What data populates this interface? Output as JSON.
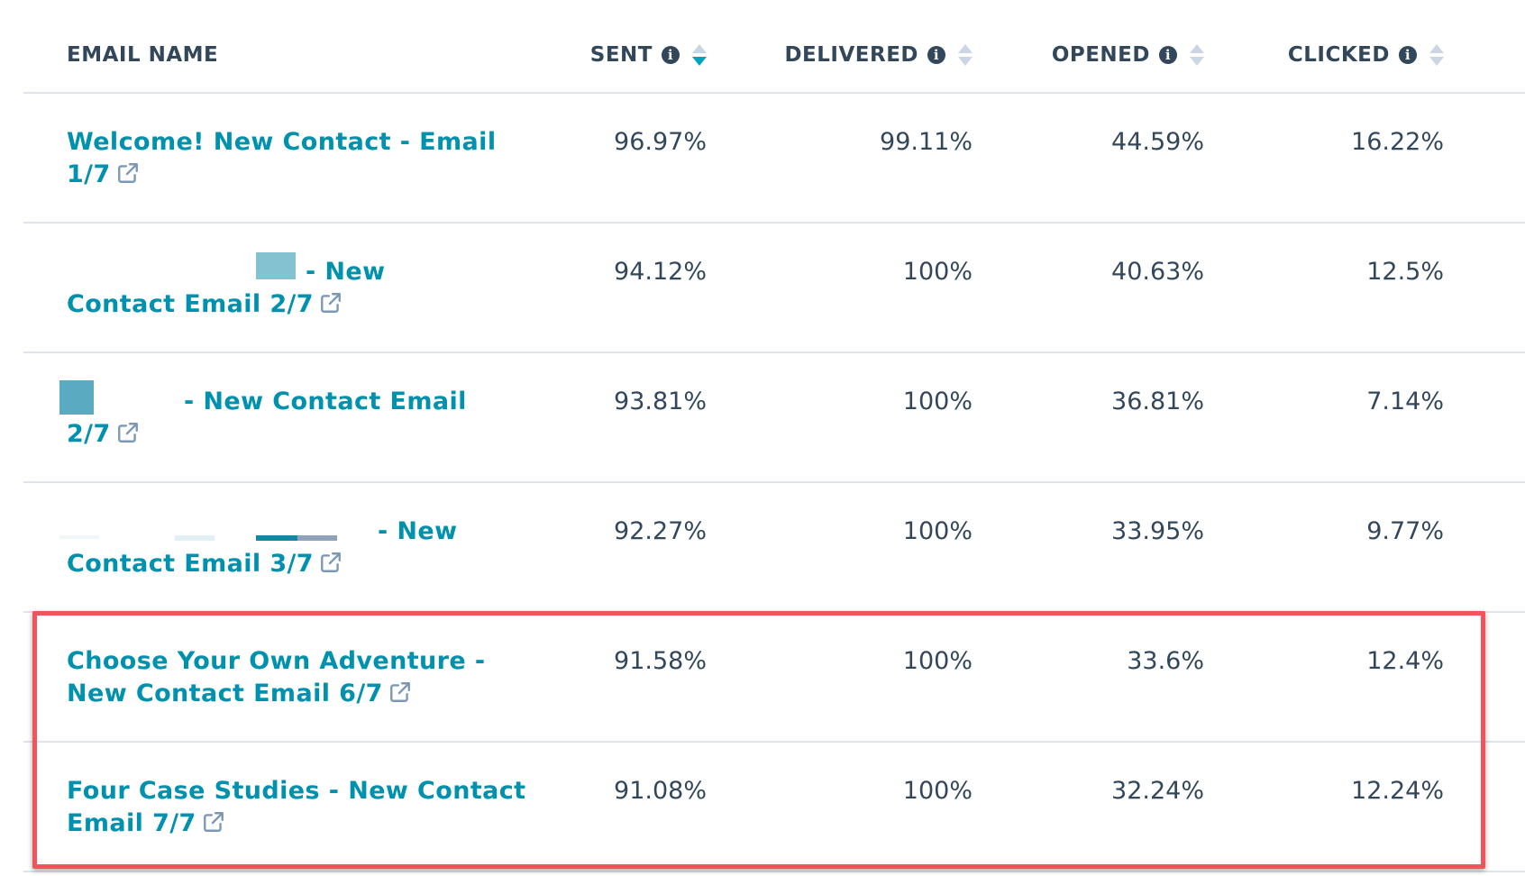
{
  "columns": {
    "email_name": "EMAIL NAME",
    "sent": "SENT",
    "delivered": "DELIVERED",
    "opened": "OPENED",
    "clicked": "CLICKED"
  },
  "rows": [
    {
      "name_line1": "Welcome! New Contact - Email",
      "name_line2": "1/7",
      "sent": "96.97%",
      "delivered": "99.11%",
      "opened": "44.59%",
      "clicked": "16.22%"
    },
    {
      "name_line1": "- New",
      "name_line2": "Contact Email 2/7",
      "sent": "94.12%",
      "delivered": "100%",
      "opened": "40.63%",
      "clicked": "12.5%"
    },
    {
      "name_line1": "- New Contact Email",
      "name_line2": "2/7",
      "sent": "93.81%",
      "delivered": "100%",
      "opened": "36.81%",
      "clicked": "7.14%"
    },
    {
      "name_line1": "- New",
      "name_line2": "Contact Email 3/7",
      "sent": "92.27%",
      "delivered": "100%",
      "opened": "33.95%",
      "clicked": "9.77%"
    },
    {
      "name_line1": "Choose Your Own Adventure -",
      "name_line2": "New Contact Email 6/7",
      "sent": "91.58%",
      "delivered": "100%",
      "opened": "33.6%",
      "clicked": "12.4%"
    },
    {
      "name_line1": "Four Case Studies - New Contact",
      "name_line2": "Email 7/7",
      "sent": "91.08%",
      "delivered": "100%",
      "opened": "32.24%",
      "clicked": "12.24%"
    }
  ],
  "colors": {
    "link": "#0091ae",
    "text": "#33475b",
    "sort_active": "#00a4bd",
    "highlight": "#f2545b"
  },
  "sort": {
    "column": "sent",
    "direction": "descending"
  }
}
